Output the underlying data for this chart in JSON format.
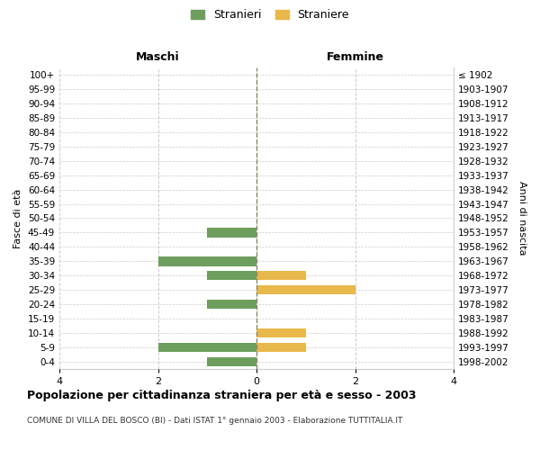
{
  "age_groups": [
    "100+",
    "95-99",
    "90-94",
    "85-89",
    "80-84",
    "75-79",
    "70-74",
    "65-69",
    "60-64",
    "55-59",
    "50-54",
    "45-49",
    "40-44",
    "35-39",
    "30-34",
    "25-29",
    "20-24",
    "15-19",
    "10-14",
    "5-9",
    "0-4"
  ],
  "birth_years": [
    "≤ 1902",
    "1903-1907",
    "1908-1912",
    "1913-1917",
    "1918-1922",
    "1923-1927",
    "1928-1932",
    "1933-1937",
    "1938-1942",
    "1943-1947",
    "1948-1952",
    "1953-1957",
    "1958-1962",
    "1963-1967",
    "1968-1972",
    "1973-1977",
    "1978-1982",
    "1983-1987",
    "1988-1992",
    "1993-1997",
    "1998-2002"
  ],
  "stranieri": [
    0,
    0,
    0,
    0,
    0,
    0,
    0,
    0,
    0,
    0,
    0,
    1,
    0,
    2,
    1,
    0,
    1,
    0,
    0,
    2,
    1
  ],
  "straniere": [
    0,
    0,
    0,
    0,
    0,
    0,
    0,
    0,
    0,
    0,
    0,
    0,
    0,
    0,
    1,
    2,
    0,
    0,
    1,
    1,
    0
  ],
  "male_color": "#6d9e5e",
  "female_color": "#e8b84b",
  "title": "Popolazione per cittadinanza straniera per età e sesso - 2003",
  "subtitle": "COMUNE DI VILLA DEL BOSCO (BI) - Dati ISTAT 1° gennaio 2003 - Elaborazione TUTTITALIA.IT",
  "ylabel_left": "Fasce di età",
  "ylabel_right": "Anni di nascita",
  "header_left": "Maschi",
  "header_right": "Femmine",
  "legend_stranieri": "Stranieri",
  "legend_straniere": "Straniere",
  "xlim": 4,
  "background_color": "#ffffff",
  "grid_color": "#cccccc"
}
